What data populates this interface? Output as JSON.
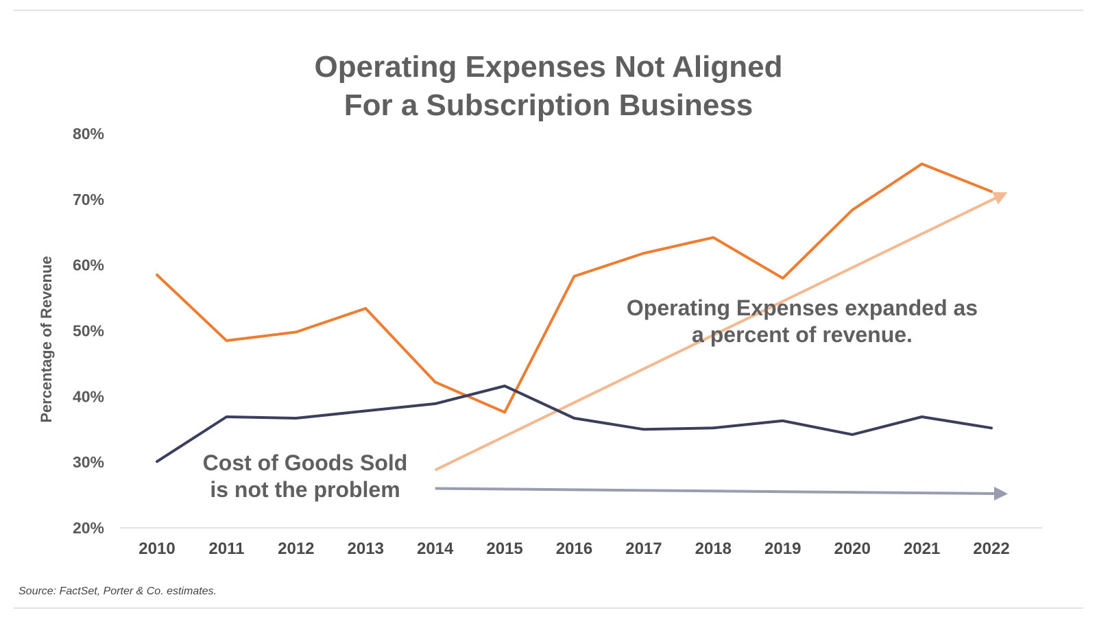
{
  "chart_data": {
    "type": "line",
    "title": [
      "Operating Expenses Not Aligned",
      "For a Subscription Business"
    ],
    "ylabel": "Percentage of Revenue",
    "xlabel": "",
    "categories": [
      "2010",
      "2011",
      "2012",
      "2013",
      "2014",
      "2015",
      "2016",
      "2017",
      "2018",
      "2019",
      "2020",
      "2021",
      "2022"
    ],
    "yticks": [
      "20%",
      "30%",
      "40%",
      "50%",
      "60%",
      "70%",
      "80%"
    ],
    "ylim": [
      20,
      80
    ],
    "grid": false,
    "series": [
      {
        "key": "opex",
        "color": "#ed7d31",
        "values": [
          58.5,
          48.5,
          49.8,
          53.4,
          42.2,
          37.6,
          58.3,
          61.8,
          64.2,
          58.0,
          68.4,
          75.4,
          71.2
        ]
      },
      {
        "key": "cogs",
        "color": "#3b3f5c",
        "values": [
          30.1,
          36.9,
          36.7,
          37.8,
          38.9,
          41.6,
          36.7,
          35.0,
          35.2,
          36.3,
          34.2,
          36.9,
          35.2
        ]
      }
    ],
    "trend_arrows": [
      {
        "key": "opex-trend",
        "color": "#f4b990",
        "from": [
          "2014",
          28.8
        ],
        "to": [
          "2022",
          70.8
        ]
      },
      {
        "key": "cogs-trend",
        "color": "#9a9db0",
        "from": [
          "2014",
          26.0
        ],
        "to": [
          "2022",
          25.2
        ]
      }
    ],
    "annotations": [
      {
        "key": "opex-note",
        "lines": [
          "Operating Expenses expanded as",
          "a percent of revenue."
        ]
      },
      {
        "key": "cogs-note",
        "lines": [
          "Cost of Goods Sold",
          "is not the problem"
        ]
      }
    ]
  },
  "footer": {
    "source": "Source: FactSet, Porter & Co. estimates."
  }
}
